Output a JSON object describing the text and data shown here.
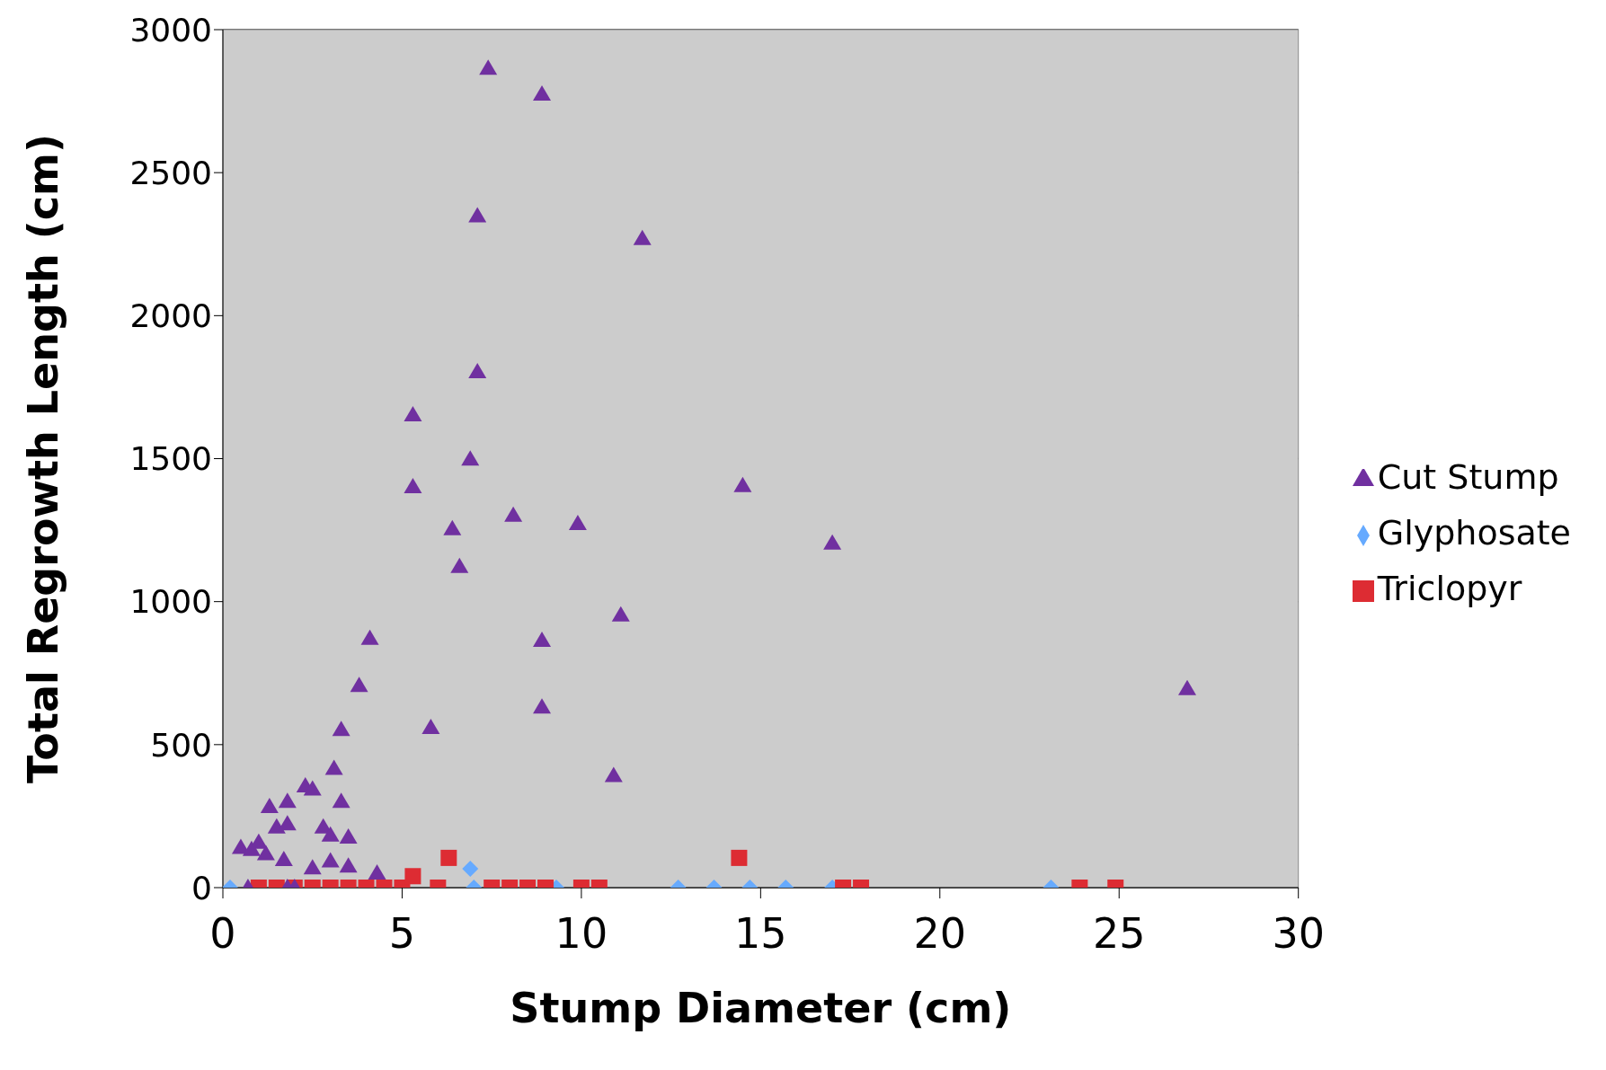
{
  "chart_data": {
    "type": "scatter",
    "xlabel": "Stump Diameter (cm)",
    "ylabel": "Total Regrowth Length (cm)",
    "xlim": [
      0,
      30
    ],
    "xticks": [
      0,
      5,
      10,
      15,
      20,
      25,
      30
    ],
    "ylim": [
      0,
      3000
    ],
    "yticks": [
      0,
      500,
      1000,
      1500,
      2000,
      2500,
      3000
    ],
    "grid": "y",
    "legend": "right",
    "series": [
      {
        "name": "Glyphosate",
        "color": "#66aaff",
        "marker": "diamond",
        "x": [
          0.2,
          6.9,
          7.0,
          9.3,
          12.7,
          13.7,
          14.7,
          15.7,
          17.0,
          23.1
        ],
        "values": [
          0,
          66,
          0,
          0,
          0,
          0,
          0,
          0,
          0,
          0
        ]
      },
      {
        "name": "Triclopyr",
        "color": "#dd2c33",
        "marker": "square",
        "x": [
          1,
          1.5,
          2,
          2.5,
          3,
          3.5,
          4,
          4.5,
          5,
          5.3,
          6,
          6.3,
          7.5,
          8,
          8.5,
          9,
          10,
          10.5,
          14.4,
          17.3,
          17.8,
          23.9,
          24.9
        ],
        "values": [
          0,
          0,
          0,
          0,
          0,
          0,
          0,
          0,
          0,
          40,
          0,
          104,
          0,
          0,
          0,
          0,
          0,
          0,
          104,
          0,
          0,
          0,
          0
        ]
      },
      {
        "name": "Cut Stump",
        "color": "#7030a0",
        "marker": "triangle",
        "x": [
          7.4,
          8.9,
          7.1,
          11.7,
          7.1,
          5.3,
          6.9,
          5.3,
          14.5,
          8.1,
          9.9,
          17.0,
          6.4,
          6.6,
          11.1,
          4.1,
          8.9,
          3.8,
          26.9,
          8.9,
          5.8,
          3.3,
          10.9,
          3.1,
          3.3,
          2.3,
          2.5,
          1.3,
          1.8,
          1.5,
          1.8,
          0.5,
          0.8,
          1.0,
          1.2,
          2.8,
          3.0,
          3.5,
          1.7,
          2.5,
          3.0,
          3.5,
          4.3,
          0.7,
          1.8,
          2.0
        ],
        "values": [
          2864,
          2774,
          2348,
          2269,
          1803,
          1652,
          1498,
          1401,
          1405,
          1301,
          1272,
          1204,
          1254,
          1122,
          953,
          871,
          864,
          706,
          695,
          631,
          559,
          552,
          391,
          416,
          301,
          355,
          344,
          283,
          301,
          211,
          222,
          140,
          133,
          158,
          118,
          211,
          183,
          176,
          97,
          68,
          93,
          75,
          50,
          0,
          0,
          0
        ]
      }
    ]
  }
}
